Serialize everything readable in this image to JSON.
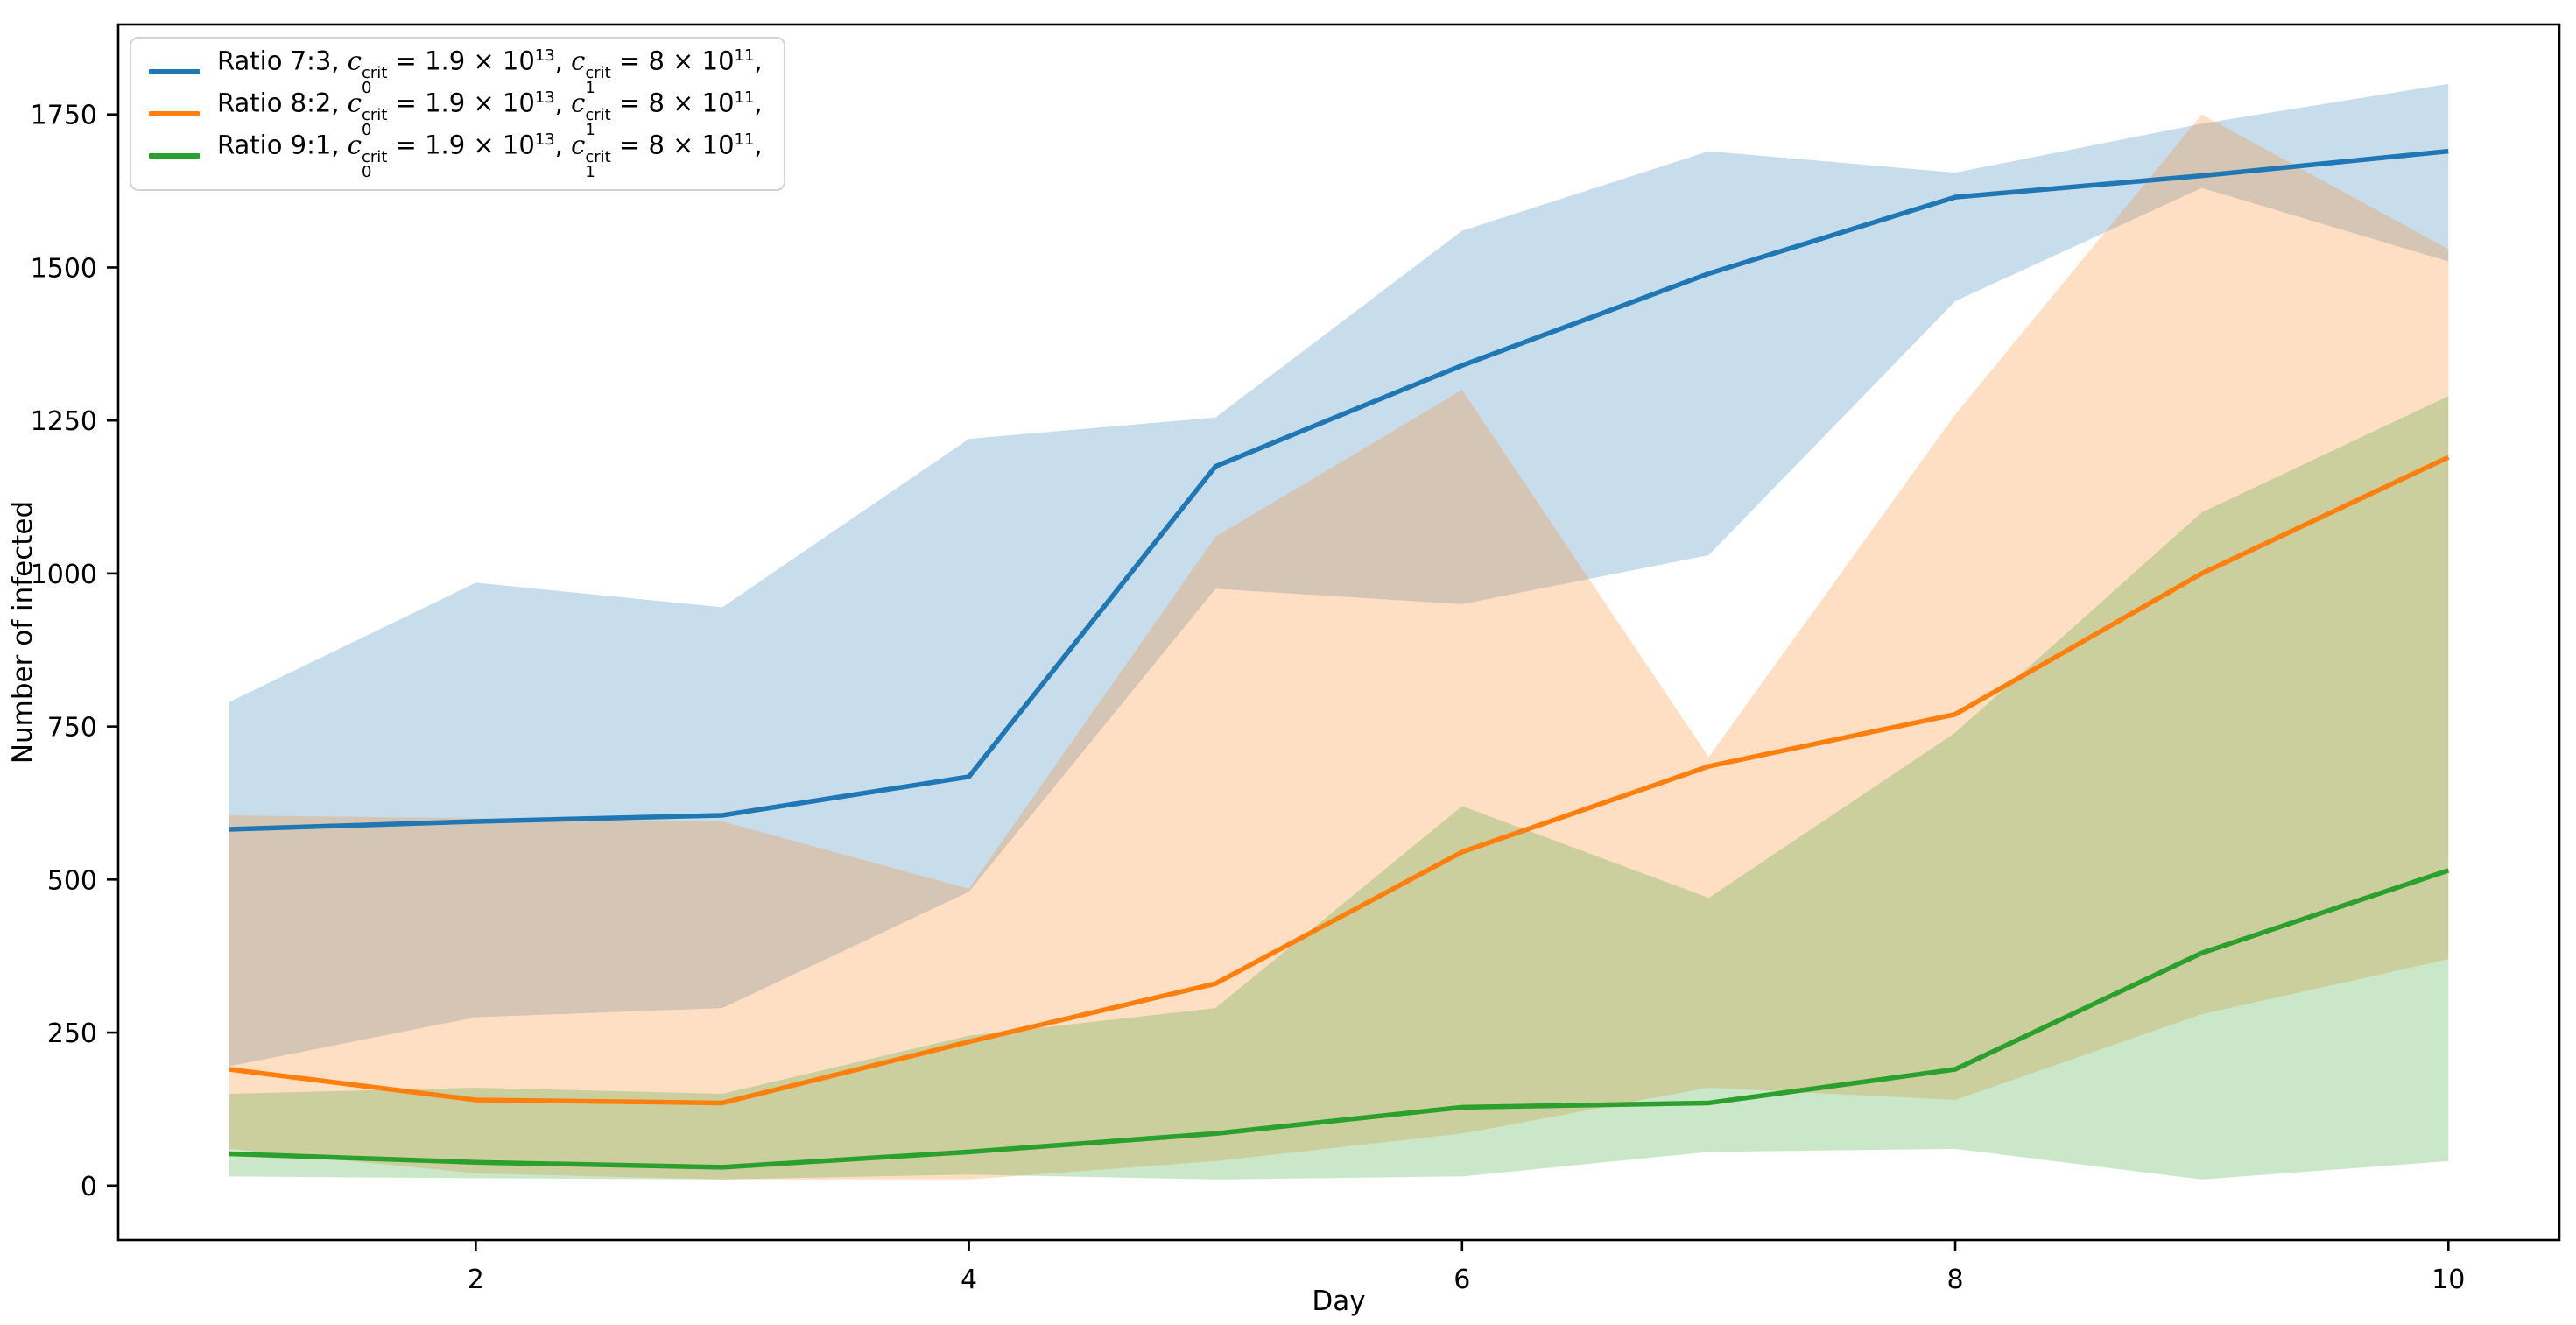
{
  "figure": {
    "background": "#ffffff",
    "axis_color": "#000000"
  },
  "legend": {
    "position": "upper left",
    "entries": [
      {
        "label": "Ratio 7:3, {c|0|crit} = 1.9 × 10{^13}, {c|1|crit} = 8 × 10{^11},",
        "color": "#1f77b4"
      },
      {
        "label": "Ratio 8:2, {c|0|crit} = 1.9 × 10{^13}, {c|1|crit} = 8 × 10{^11},",
        "color": "#ff7f0e"
      },
      {
        "label": "Ratio 9:1, {c|0|crit} = 1.9 × 10{^13}, {c|1|crit} = 8 × 10{^11},",
        "color": "#2ca02c"
      }
    ]
  },
  "chart_data": {
    "type": "line",
    "title": "",
    "xlabel": "Day",
    "ylabel": "Number of infected",
    "x": [
      1,
      2,
      3,
      4,
      5,
      6,
      7,
      8,
      9,
      10
    ],
    "xticks": [
      2,
      4,
      6,
      8,
      10
    ],
    "yticks": [
      0,
      250,
      500,
      750,
      1000,
      1250,
      1500,
      1750
    ],
    "xlim": [
      0.55,
      10.45
    ],
    "ylim": [
      -89,
      1897
    ],
    "grid": false,
    "band_alpha": 0.25,
    "series": [
      {
        "name": "Ratio 7:3",
        "color": "#1f77b4",
        "values": [
          582,
          595,
          605,
          668,
          1175,
          1340,
          1490,
          1615,
          1650,
          1690
        ],
        "band_upper": [
          790,
          985,
          945,
          1220,
          1255,
          1560,
          1690,
          1655,
          1735,
          1800
        ],
        "band_lower": [
          195,
          275,
          290,
          480,
          975,
          950,
          1030,
          1445,
          1630,
          1510
        ]
      },
      {
        "name": "Ratio 8:2",
        "color": "#ff7f0e",
        "values": [
          190,
          140,
          135,
          235,
          330,
          545,
          685,
          770,
          1000,
          1190
        ],
        "band_upper": [
          605,
          600,
          595,
          485,
          1060,
          1300,
          700,
          1260,
          1750,
          1530
        ],
        "band_lower": [
          60,
          20,
          10,
          10,
          40,
          85,
          160,
          140,
          280,
          370
        ]
      },
      {
        "name": "Ratio 9:1",
        "color": "#2ca02c",
        "values": [
          52,
          38,
          30,
          55,
          85,
          128,
          135,
          190,
          380,
          515
        ],
        "band_upper": [
          150,
          160,
          150,
          245,
          290,
          620,
          470,
          740,
          1100,
          1290
        ],
        "band_lower": [
          15,
          12,
          10,
          18,
          10,
          15,
          55,
          60,
          10,
          40
        ]
      }
    ]
  }
}
